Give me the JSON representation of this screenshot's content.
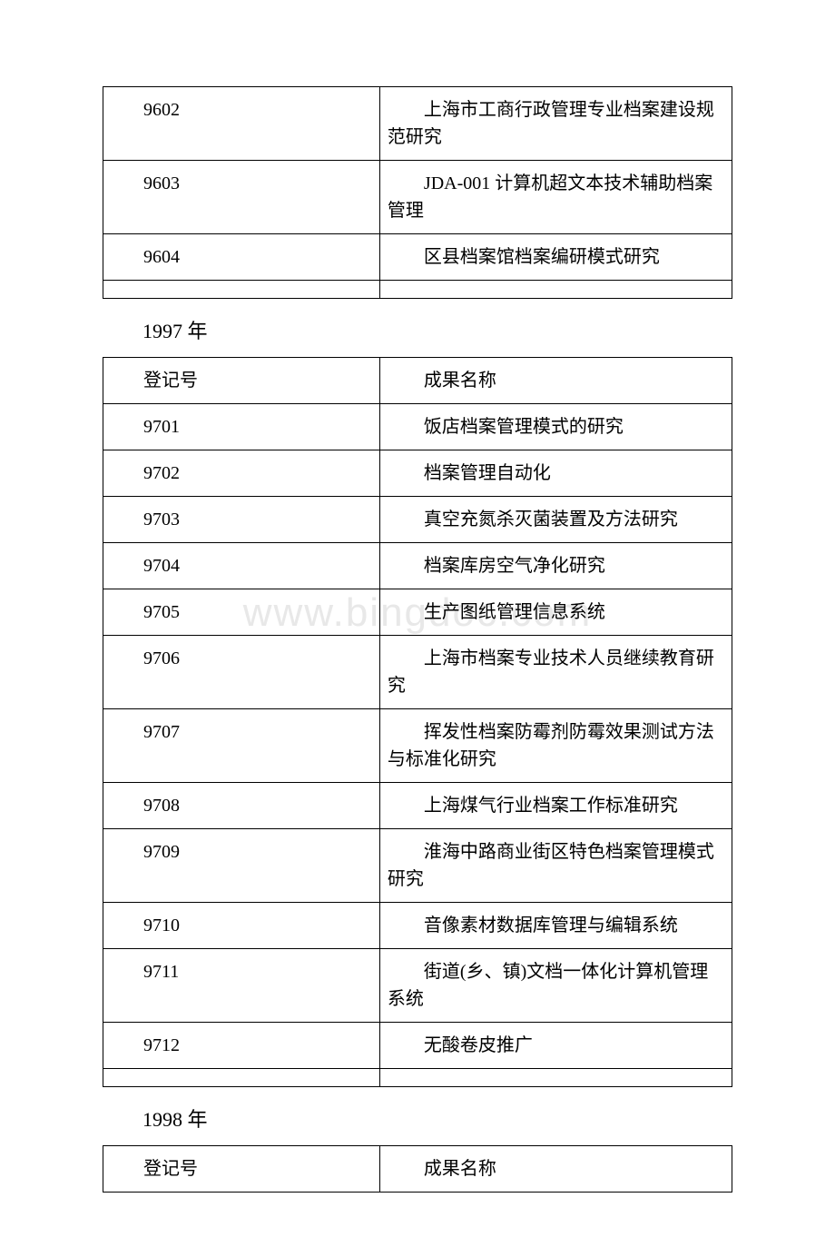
{
  "tables": {
    "t1996": {
      "rows": [
        {
          "id": "9602",
          "name": "上海市工商行政管理专业档案建设规范研究"
        },
        {
          "id": "9603",
          "name": "JDA-001 计算机超文本技术辅助档案管理"
        },
        {
          "id": "9604",
          "name": "区县档案馆档案编研模式研究"
        }
      ]
    },
    "t1997": {
      "heading": "1997 年",
      "header": {
        "col1": "登记号",
        "col2": "成果名称"
      },
      "rows": [
        {
          "id": "9701",
          "name": "饭店档案管理模式的研究"
        },
        {
          "id": "9702",
          "name": "档案管理自动化"
        },
        {
          "id": "9703",
          "name": "真空充氮杀灭菌装置及方法研究"
        },
        {
          "id": "9704",
          "name": "档案库房空气净化研究"
        },
        {
          "id": "9705",
          "name": "生产图纸管理信息系统"
        },
        {
          "id": "9706",
          "name": "上海市档案专业技术人员继续教育研究"
        },
        {
          "id": "9707",
          "name": "挥发性档案防霉剂防霉效果测试方法与标准化研究"
        },
        {
          "id": "9708",
          "name": "上海煤气行业档案工作标准研究"
        },
        {
          "id": "9709",
          "name": "淮海中路商业街区特色档案管理模式研究"
        },
        {
          "id": "9710",
          "name": "音像素材数据库管理与编辑系统"
        },
        {
          "id": "9711",
          "name": "街道(乡、镇)文档一体化计算机管理系统"
        },
        {
          "id": "9712",
          "name": "无酸卷皮推广"
        }
      ]
    },
    "t1998": {
      "heading": "1998 年",
      "header": {
        "col1": "登记号",
        "col2": "成果名称"
      }
    }
  },
  "watermark": "www.bingdoc.com"
}
